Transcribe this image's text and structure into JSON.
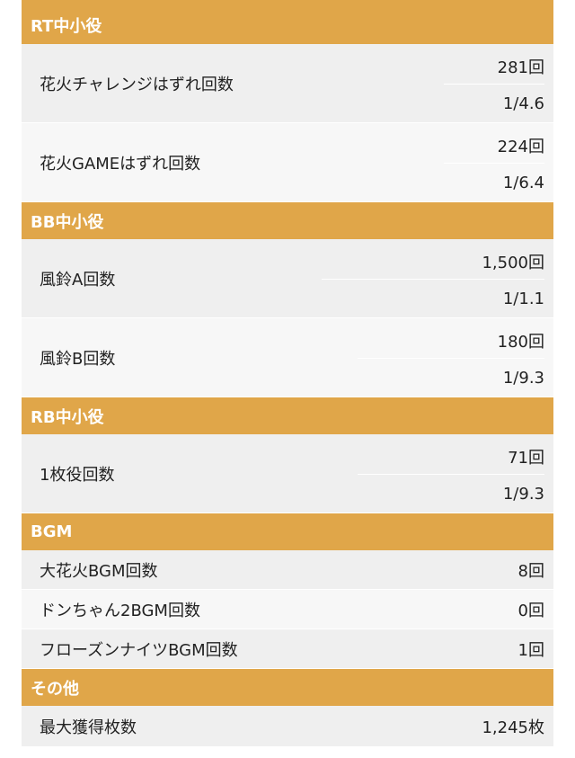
{
  "sections": [
    {
      "title": "RT中小役",
      "rows": [
        {
          "label": "花火チャレンジはずれ回数",
          "count": "281回",
          "prob": "1/4.6"
        },
        {
          "label": "花火GAMEはずれ回数",
          "count": "224回",
          "prob": "1/6.4"
        }
      ]
    },
    {
      "title": "BB中小役",
      "rows": [
        {
          "label": "風鈴A回数",
          "count": "1,500回",
          "prob": "1/1.1"
        },
        {
          "label": "風鈴B回数",
          "count": "180回",
          "prob": "1/9.3"
        }
      ]
    },
    {
      "title": "RB中小役",
      "rows": [
        {
          "label": "1枚役回数",
          "count": "71回",
          "prob": "1/9.3"
        }
      ]
    },
    {
      "title": "BGM",
      "rows": [
        {
          "label": "大花火BGM回数",
          "count": "8回"
        },
        {
          "label": "ドンちゃん2BGM回数",
          "count": "0回"
        },
        {
          "label": "フローズンナイツBGM回数",
          "count": "1回"
        }
      ]
    },
    {
      "title": "その他",
      "rows": [
        {
          "label": "最大獲得枚数",
          "count": "1,245枚"
        }
      ]
    }
  ],
  "colors": {
    "header_bg": "#e0a649",
    "row_alt": "#efefef",
    "row_plain": "#f7f7f7"
  }
}
